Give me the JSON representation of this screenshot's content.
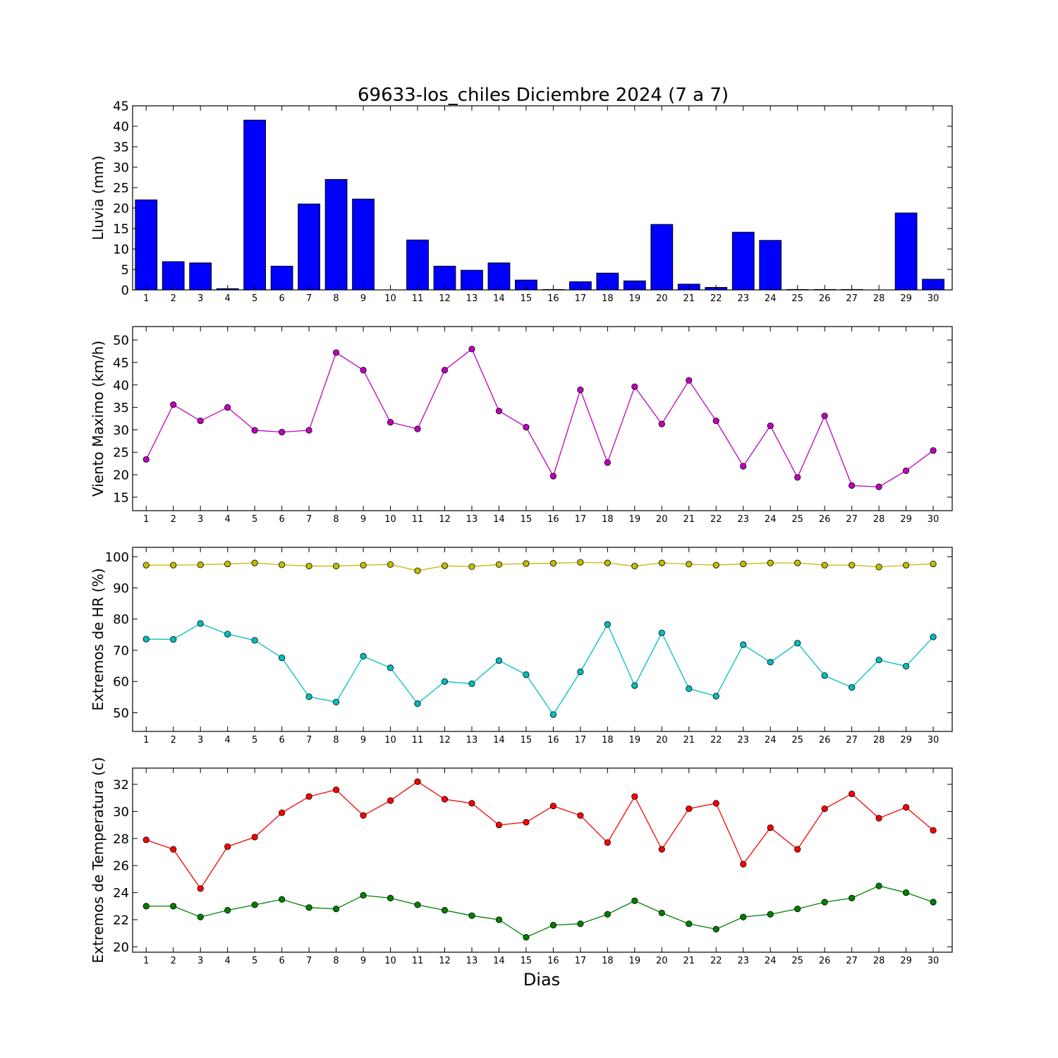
{
  "title": "69633-los_chiles Diciembre 2024  (7 a 7)",
  "xlabel": "Dias",
  "chart_data": [
    {
      "type": "bar",
      "ylabel": "Lluvia (mm)",
      "ylim": [
        0,
        45
      ],
      "yticks": [
        0,
        5,
        10,
        15,
        20,
        25,
        30,
        35,
        40,
        45
      ],
      "x": [
        1,
        2,
        3,
        4,
        5,
        6,
        7,
        8,
        9,
        10,
        11,
        12,
        13,
        14,
        15,
        16,
        17,
        18,
        19,
        20,
        21,
        22,
        23,
        24,
        25,
        26,
        27,
        28,
        29,
        30
      ],
      "series": [
        {
          "values": [
            22.0,
            6.9,
            6.6,
            0.3,
            41.5,
            5.8,
            21.0,
            27.0,
            22.2,
            0.0,
            12.2,
            5.8,
            4.8,
            6.6,
            2.4,
            0.1,
            2.0,
            4.1,
            2.2,
            16.0,
            1.4,
            0.6,
            14.1,
            12.1,
            0.1,
            0.1,
            0.1,
            0.0,
            18.8,
            2.6
          ],
          "color": "#0000ff"
        }
      ]
    },
    {
      "type": "line",
      "ylabel": "Viento Maximo (km/h)",
      "ylim": [
        12,
        53
      ],
      "yticks": [
        15,
        20,
        25,
        30,
        35,
        40,
        45,
        50
      ],
      "x": [
        1,
        2,
        3,
        4,
        5,
        6,
        7,
        8,
        9,
        10,
        11,
        12,
        13,
        14,
        15,
        16,
        17,
        18,
        19,
        20,
        21,
        22,
        23,
        24,
        25,
        26,
        27,
        28,
        29,
        30
      ],
      "series": [
        {
          "values": [
            23.4,
            35.6,
            32.0,
            35.0,
            29.9,
            29.5,
            29.9,
            47.2,
            43.3,
            31.7,
            30.2,
            43.3,
            48.0,
            34.2,
            30.6,
            19.7,
            38.9,
            22.7,
            39.6,
            31.3,
            41.0,
            32.0,
            21.9,
            30.9,
            19.4,
            33.1,
            17.6,
            17.3,
            20.9,
            25.4
          ],
          "color": "#bf00bf"
        }
      ]
    },
    {
      "type": "line",
      "ylabel": "Extremos de HR (%)",
      "ylim": [
        44,
        103
      ],
      "yticks": [
        50,
        60,
        70,
        80,
        90,
        100
      ],
      "x": [
        1,
        2,
        3,
        4,
        5,
        6,
        7,
        8,
        9,
        10,
        11,
        12,
        13,
        14,
        15,
        16,
        17,
        18,
        19,
        20,
        21,
        22,
        23,
        24,
        25,
        26,
        27,
        28,
        29,
        30
      ],
      "series": [
        {
          "values": [
            97.3,
            97.3,
            97.4,
            97.7,
            98.0,
            97.4,
            97.0,
            97.0,
            97.3,
            97.5,
            95.5,
            97.1,
            96.8,
            97.5,
            97.8,
            97.9,
            98.2,
            98.0,
            97.0,
            98.0,
            97.6,
            97.3,
            97.7,
            98.0,
            98.0,
            97.3,
            97.3,
            96.7,
            97.3,
            97.7
          ],
          "color": "#bfbf00"
        },
        {
          "values": [
            73.6,
            73.5,
            78.6,
            75.2,
            73.2,
            67.6,
            55.1,
            53.4,
            68.1,
            64.4,
            52.9,
            60.0,
            59.3,
            66.7,
            62.2,
            49.4,
            63.1,
            78.3,
            58.7,
            75.6,
            57.7,
            55.3,
            71.8,
            66.2,
            72.3,
            61.9,
            58.1,
            66.9,
            64.9,
            74.3
          ],
          "color": "#00bfbf"
        }
      ]
    },
    {
      "type": "line",
      "ylabel": "Extremos de Temperatura (c)",
      "ylim": [
        19.6,
        33.2
      ],
      "yticks": [
        20,
        22,
        24,
        26,
        28,
        30,
        32
      ],
      "x": [
        1,
        2,
        3,
        4,
        5,
        6,
        7,
        8,
        9,
        10,
        11,
        12,
        13,
        14,
        15,
        16,
        17,
        18,
        19,
        20,
        21,
        22,
        23,
        24,
        25,
        26,
        27,
        28,
        29,
        30
      ],
      "series": [
        {
          "values": [
            27.9,
            27.2,
            24.3,
            27.4,
            28.1,
            29.9,
            31.1,
            31.6,
            29.7,
            30.8,
            32.2,
            30.9,
            30.6,
            29.0,
            29.2,
            30.4,
            29.7,
            27.7,
            31.1,
            27.2,
            30.2,
            30.6,
            26.1,
            28.8,
            27.2,
            30.2,
            31.3,
            29.5,
            30.3,
            28.6
          ],
          "color": "#ff0000"
        },
        {
          "values": [
            23.0,
            23.0,
            22.2,
            22.7,
            23.1,
            23.5,
            22.9,
            22.8,
            23.8,
            23.6,
            23.1,
            22.7,
            22.3,
            22.0,
            20.7,
            21.6,
            21.7,
            22.4,
            23.4,
            22.5,
            21.7,
            21.3,
            22.2,
            22.4,
            22.8,
            23.3,
            23.6,
            24.5,
            24.0,
            23.3
          ],
          "color": "#008000"
        }
      ]
    }
  ]
}
